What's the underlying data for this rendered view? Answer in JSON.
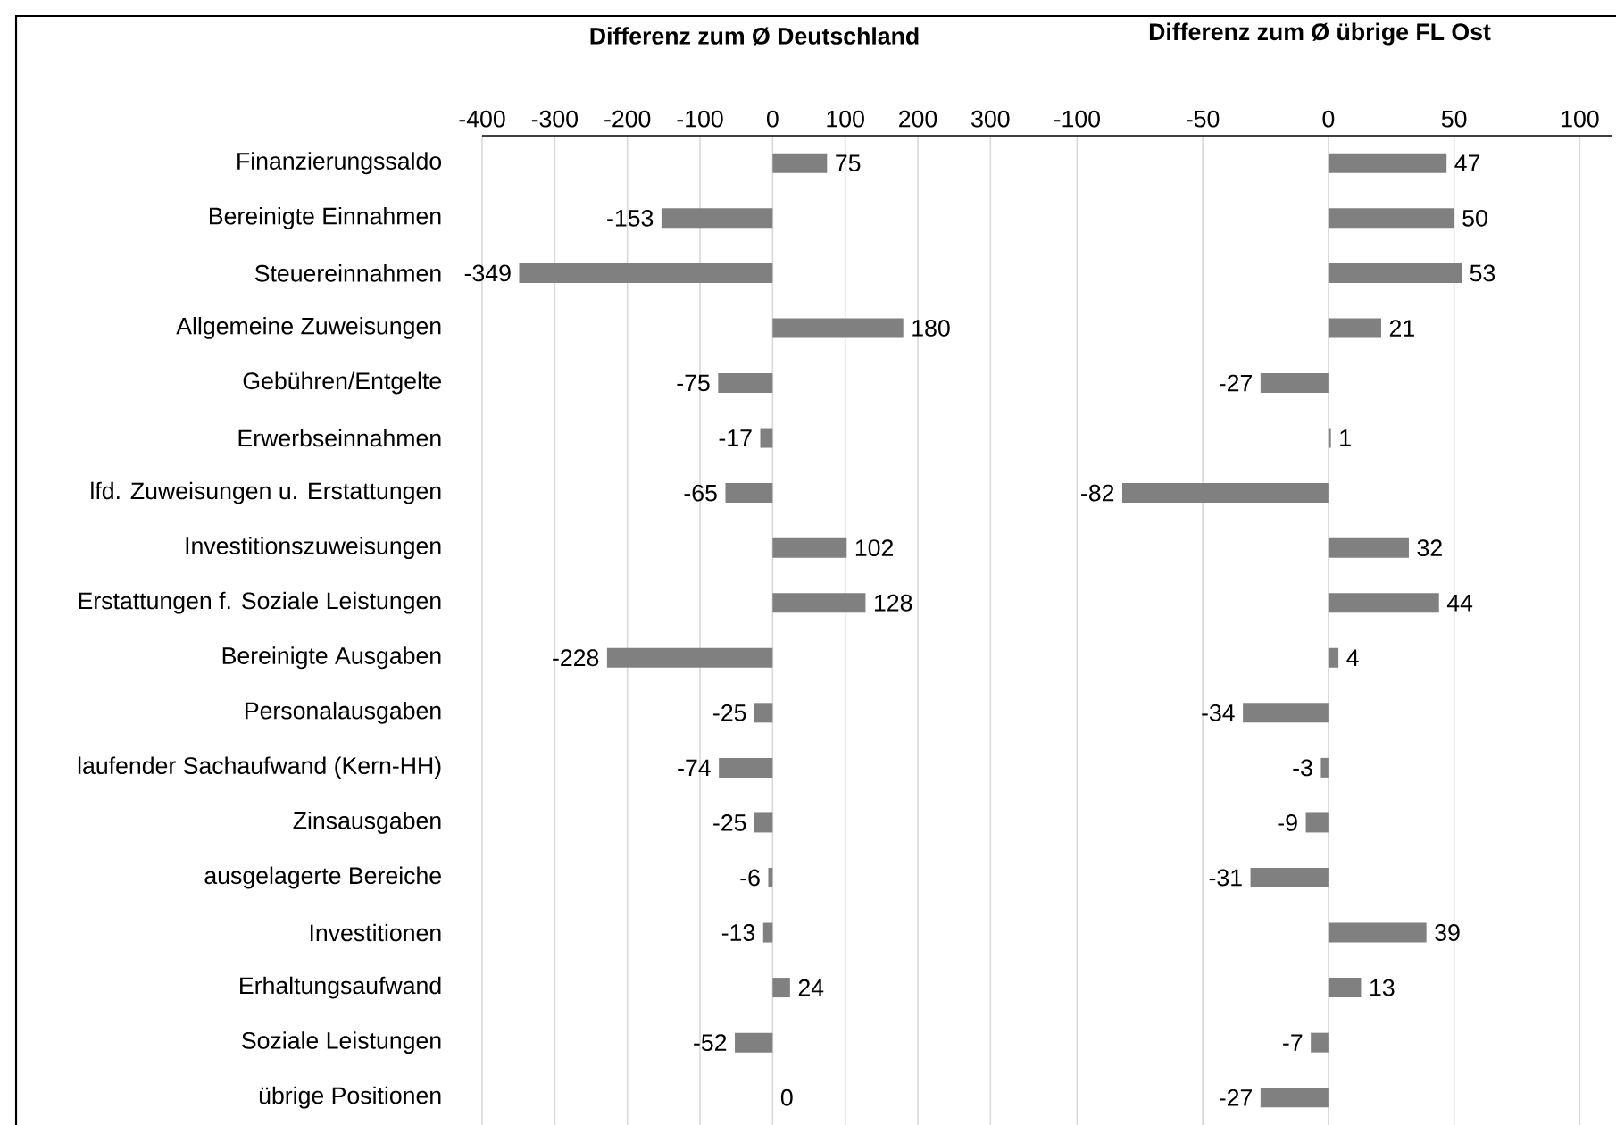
{
  "chart_data": [
    {
      "type": "bar",
      "orientation": "horizontal",
      "title": "**Differenz zum Ø Deutschland**",
      "categories": [
        "Finanzierungssaldo",
        "Bereinigte Einnahmen",
        "Steuereinnahmen",
        "Allgemeine Zuweisungen",
        "Gebühren/Entgelte",
        "Erwerbseinnahmen",
        "lfd. Zuweisungen u. Erstattungen",
        "Investitionszuweisungen",
        "Erstattungen f. Soziale Leistungen",
        "Bereinigte Ausgaben",
        "Personalausgaben",
        "laufender Sachaufwand (Kern-HH)",
        "Zinsausgaben",
        "ausgelagerte Bereiche",
        "Investitionen",
        "Erhaltungsaufwand",
        "Soziale Leistungen",
        "übrige Positionen"
      ],
      "values": [
        75,
        -153,
        -349,
        180,
        -75,
        -17,
        -65,
        102,
        128,
        -228,
        -25,
        -74,
        -25,
        -6,
        -13,
        24,
        -52,
        0
      ],
      "color": "#808080",
      "xlim": [
        -400,
        350
      ],
      "xticks": [
        -400,
        -300,
        -200,
        -100,
        0,
        100,
        200,
        300
      ],
      "grid": "x",
      "data_labels": true
    },
    {
      "type": "bar",
      "orientation": "horizontal",
      "title": "**Differenz zum Ø übrige FL Ost**",
      "categories": [
        null,
        null,
        null,
        null,
        null,
        null,
        null,
        null,
        null,
        null,
        null,
        null,
        null,
        null,
        null,
        null,
        null,
        null
      ],
      "values": [
        47,
        50,
        53,
        21,
        -27,
        1,
        -82,
        32,
        44,
        4,
        -34,
        -3,
        -9,
        -31,
        39,
        13,
        -7,
        -27
      ],
      "color": "#808080",
      "xlim": [
        -120,
        113
      ],
      "xticks": [
        -100,
        -50,
        0,
        50,
        100
      ],
      "grid": "x",
      "data_labels": true,
      "tick_labels": "x"
    }
  ]
}
